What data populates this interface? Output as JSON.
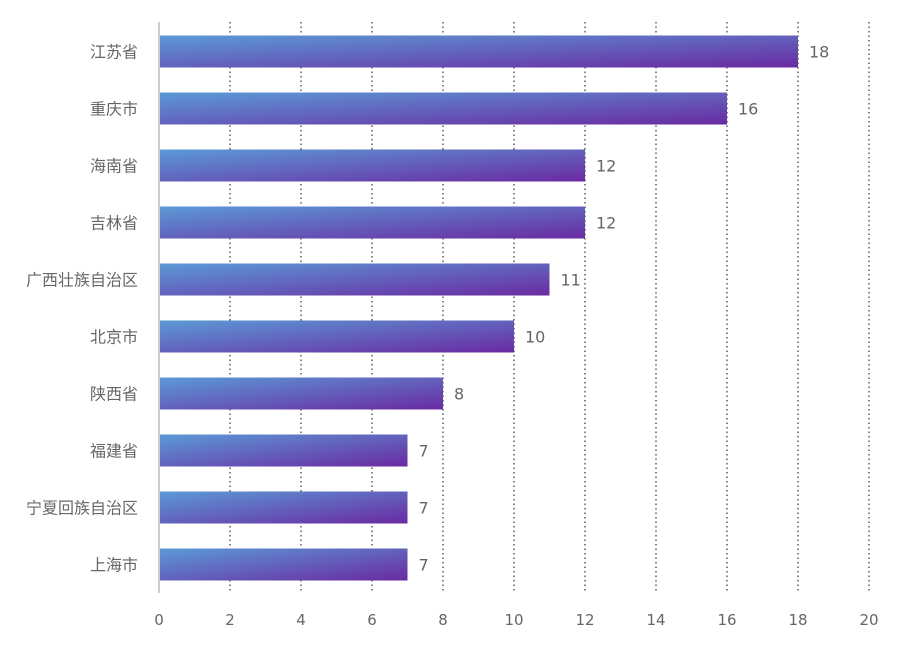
{
  "chart_data": {
    "type": "bar",
    "orientation": "horizontal",
    "title": "",
    "xlabel": "",
    "ylabel": "",
    "categories": [
      "江苏省",
      "重庆市",
      "海南省",
      "吉林省",
      "广西壮族自治区",
      "北京市",
      "陕西省",
      "福建省",
      "宁夏回族自治区",
      "上海市"
    ],
    "values": [
      18,
      16,
      12,
      12,
      11,
      10,
      8,
      7,
      7,
      7
    ],
    "xlim": [
      0,
      20
    ],
    "xticks": [
      "0",
      "2",
      "4",
      "6",
      "8",
      "10",
      "12",
      "14",
      "16",
      "18",
      "20"
    ],
    "grid": "vertical-dotted",
    "data_labels": true,
    "colors": {
      "bar_start": "#5b9ad6",
      "bar_end": "#6a2aa2",
      "label": "#666666",
      "axis": "#999999",
      "grid": "#333333"
    }
  }
}
